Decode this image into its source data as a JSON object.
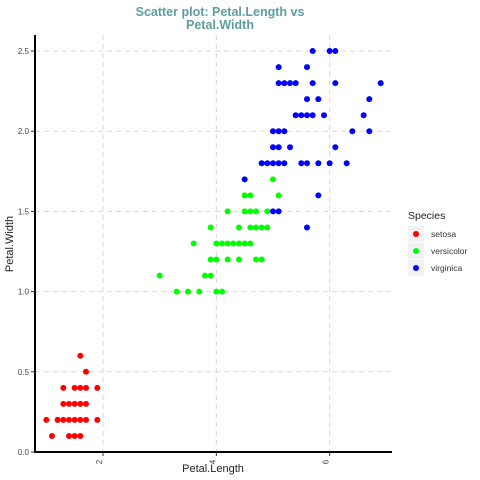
{
  "chart_data": {
    "type": "scatter",
    "title_lines": [
      "Scatter plot: Petal.Length vs",
      "Petal.Width"
    ],
    "xlabel": "Petal.Length",
    "ylabel": "Petal.Width",
    "xlim": [
      0.8,
      7.1
    ],
    "ylim": [
      0.0,
      2.6
    ],
    "x_ticks": [
      2,
      4,
      6
    ],
    "y_ticks": [
      0.0,
      0.5,
      1.0,
      1.5,
      2.0,
      2.5
    ],
    "x_tick_labels": [
      "2",
      "4",
      "6"
    ],
    "y_tick_labels": [
      "0.0",
      "0.5",
      "1.0",
      "1.5",
      "2.0",
      "2.5"
    ],
    "grid": true,
    "legend": {
      "title": "Species",
      "position": "right"
    },
    "series": [
      {
        "name": "setosa",
        "color": "#ff0000",
        "points": [
          [
            1.0,
            0.2
          ],
          [
            1.1,
            0.1
          ],
          [
            1.2,
            0.2
          ],
          [
            1.3,
            0.2
          ],
          [
            1.3,
            0.3
          ],
          [
            1.3,
            0.4
          ],
          [
            1.4,
            0.2
          ],
          [
            1.4,
            0.3
          ],
          [
            1.5,
            0.1
          ],
          [
            1.5,
            0.2
          ],
          [
            1.5,
            0.3
          ],
          [
            1.5,
            0.4
          ],
          [
            1.6,
            0.1
          ],
          [
            1.6,
            0.2
          ],
          [
            1.6,
            0.3
          ],
          [
            1.6,
            0.4
          ],
          [
            1.7,
            0.2
          ],
          [
            1.7,
            0.3
          ],
          [
            1.7,
            0.4
          ],
          [
            1.7,
            0.5
          ],
          [
            1.6,
            0.6
          ],
          [
            1.9,
            0.2
          ],
          [
            1.9,
            0.4
          ],
          [
            1.4,
            0.1
          ],
          [
            1.2,
            0.2
          ]
        ]
      },
      {
        "name": "versicolor",
        "color": "#00ff00",
        "points": [
          [
            3.0,
            1.1
          ],
          [
            3.3,
            1.0
          ],
          [
            3.5,
            1.0
          ],
          [
            3.6,
            1.3
          ],
          [
            3.7,
            1.0
          ],
          [
            3.8,
            1.1
          ],
          [
            3.9,
            1.1
          ],
          [
            3.9,
            1.2
          ],
          [
            3.9,
            1.4
          ],
          [
            4.0,
            1.0
          ],
          [
            4.1,
            1.0
          ],
          [
            4.0,
            1.2
          ],
          [
            4.0,
            1.3
          ],
          [
            4.1,
            1.3
          ],
          [
            4.2,
            1.2
          ],
          [
            4.2,
            1.3
          ],
          [
            4.2,
            1.5
          ],
          [
            4.3,
            1.3
          ],
          [
            4.4,
            1.2
          ],
          [
            4.4,
            1.3
          ],
          [
            4.4,
            1.4
          ],
          [
            4.5,
            1.3
          ],
          [
            4.5,
            1.5
          ],
          [
            4.5,
            1.6
          ],
          [
            4.6,
            1.3
          ],
          [
            4.6,
            1.4
          ],
          [
            4.6,
            1.5
          ],
          [
            4.7,
            1.2
          ],
          [
            4.7,
            1.4
          ],
          [
            4.7,
            1.5
          ],
          [
            4.8,
            1.4
          ],
          [
            4.8,
            1.8
          ],
          [
            4.9,
            1.5
          ],
          [
            5.0,
            1.7
          ],
          [
            5.1,
            1.6
          ],
          [
            4.8,
            1.2
          ],
          [
            4.6,
            1.6
          ],
          [
            4.9,
            1.4
          ]
        ]
      },
      {
        "name": "virginica",
        "color": "#0000ff",
        "points": [
          [
            4.5,
            1.7
          ],
          [
            4.8,
            1.8
          ],
          [
            4.9,
            1.8
          ],
          [
            5.0,
            1.5
          ],
          [
            5.0,
            1.8
          ],
          [
            5.0,
            1.9
          ],
          [
            5.0,
            2.0
          ],
          [
            5.1,
            1.5
          ],
          [
            5.1,
            1.8
          ],
          [
            5.1,
            1.9
          ],
          [
            5.1,
            2.0
          ],
          [
            5.1,
            2.3
          ],
          [
            5.1,
            2.4
          ],
          [
            5.2,
            2.0
          ],
          [
            5.2,
            2.3
          ],
          [
            5.3,
            2.3
          ],
          [
            5.4,
            2.1
          ],
          [
            5.4,
            2.3
          ],
          [
            5.5,
            1.8
          ],
          [
            5.5,
            2.1
          ],
          [
            5.6,
            1.4
          ],
          [
            5.6,
            1.8
          ],
          [
            5.6,
            2.1
          ],
          [
            5.6,
            2.2
          ],
          [
            5.6,
            2.4
          ],
          [
            5.7,
            2.1
          ],
          [
            5.7,
            2.3
          ],
          [
            5.7,
            2.5
          ],
          [
            5.8,
            1.6
          ],
          [
            5.8,
            1.8
          ],
          [
            5.8,
            2.2
          ],
          [
            5.9,
            2.1
          ],
          [
            6.0,
            1.8
          ],
          [
            6.0,
            2.5
          ],
          [
            6.1,
            1.9
          ],
          [
            6.1,
            2.3
          ],
          [
            6.1,
            2.5
          ],
          [
            6.3,
            1.8
          ],
          [
            6.4,
            2.0
          ],
          [
            6.6,
            2.1
          ],
          [
            6.7,
            2.0
          ],
          [
            6.7,
            2.2
          ],
          [
            6.9,
            2.3
          ],
          [
            5.3,
            1.9
          ],
          [
            5.2,
            1.8
          ]
        ]
      }
    ]
  }
}
